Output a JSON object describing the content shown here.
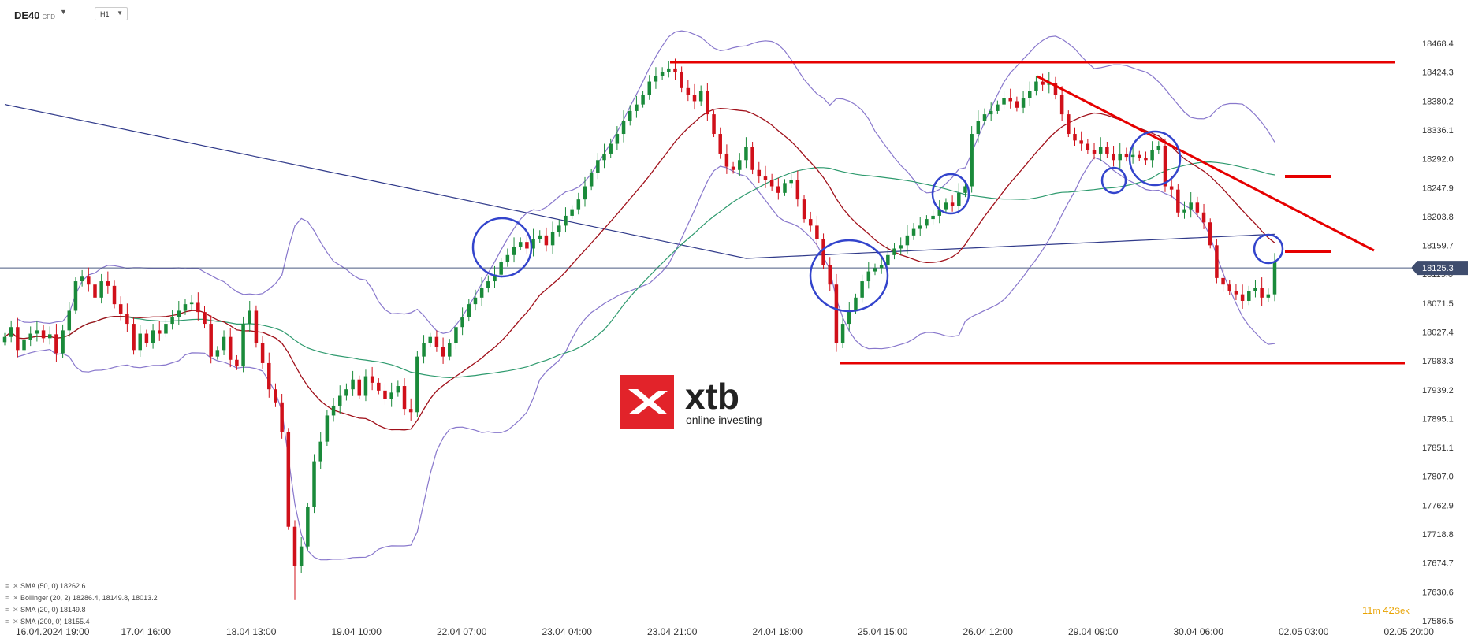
{
  "header": {
    "symbol": "DE40",
    "symbol_tag": "CFD",
    "timeframe": "H1"
  },
  "legend": [
    {
      "text": "SMA (50, 0) 18262.6"
    },
    {
      "text": "Bollinger (20, 2) 18286.4, 18149.8, 18013.2"
    },
    {
      "text": "SMA (20, 0) 18149.8"
    },
    {
      "text": "SMA (200, 0) 18155.4"
    }
  ],
  "logo": {
    "brand": "xtb",
    "tagline": "online investing",
    "color": "#e2232a"
  },
  "timer": {
    "minutes": "11",
    "m": "m",
    "seconds": "42",
    "sek": "Sek"
  },
  "colors": {
    "bull": "#1a8a3a",
    "bear": "#d0101a",
    "bb": "#8877cc",
    "sma20": "#a0101a",
    "sma50": "#2e9a6e",
    "sma200": "#303a8a",
    "annot": "#e60000",
    "circle": "#3344cc"
  },
  "chart_data": {
    "type": "candlestick",
    "symbol": "DE40",
    "timeframe": "H1",
    "y_ticks": [
      18468.4,
      18424.3,
      18380.2,
      18336.1,
      18292.0,
      18247.9,
      18203.8,
      18159.7,
      18115.6,
      18071.5,
      18027.4,
      17983.3,
      17939.2,
      17895.1,
      17851.1,
      17807.0,
      17762.9,
      17718.8,
      17674.7,
      17630.6,
      17586.5
    ],
    "ylim": [
      17586.5,
      18468.4
    ],
    "x_labels": [
      "16.04.2024 19:00",
      "17.04 16:00",
      "18.04 13:00",
      "19.04 10:00",
      "22.04 07:00",
      "23.04 04:00",
      "23.04 21:00",
      "24.04 18:00",
      "25.04 15:00",
      "26.04 12:00",
      "29.04 09:00",
      "30.04 06:00",
      "02.05 03:00",
      "02.05 20:00"
    ],
    "current_price": 18125.3,
    "closes": [
      18020,
      18035,
      18000,
      18015,
      18025,
      18030,
      18018,
      18024,
      17995,
      18030,
      18060,
      18105,
      18112,
      18100,
      18080,
      18105,
      18098,
      18070,
      18055,
      18040,
      18000,
      18025,
      18010,
      18030,
      18025,
      18040,
      18050,
      18060,
      18070,
      18072,
      18058,
      18040,
      17990,
      18000,
      18020,
      17985,
      17975,
      18040,
      18060,
      18010,
      17980,
      17940,
      17920,
      17875,
      17730,
      17670,
      17700,
      17760,
      17830,
      17860,
      17900,
      17915,
      17930,
      17940,
      17955,
      17930,
      17960,
      17950,
      17938,
      17925,
      17935,
      17945,
      17910,
      17905,
      17990,
      18010,
      18020,
      18005,
      17990,
      18010,
      18035,
      18050,
      18070,
      18080,
      18095,
      18105,
      18115,
      18135,
      18145,
      18158,
      18165,
      18155,
      18170,
      18175,
      18160,
      18180,
      18190,
      18205,
      18215,
      18230,
      18250,
      18270,
      18290,
      18300,
      18315,
      18330,
      18350,
      18365,
      18375,
      18390,
      18410,
      18418,
      18425,
      18430,
      18425,
      18400,
      18390,
      18380,
      18395,
      18360,
      18330,
      18300,
      18280,
      18275,
      18290,
      18310,
      18275,
      18265,
      18260,
      18250,
      18240,
      18255,
      18260,
      18230,
      18200,
      18190,
      18170,
      18130,
      18100,
      18010,
      18040,
      18060,
      18080,
      18105,
      18120,
      18125,
      18130,
      18145,
      18155,
      18160,
      18175,
      18185,
      18190,
      18200,
      18205,
      18215,
      18225,
      18220,
      18240,
      18250,
      18330,
      18350,
      18360,
      18365,
      18375,
      18385,
      18380,
      18370,
      18385,
      18395,
      18410,
      18405,
      18408,
      18390,
      18360,
      18330,
      18320,
      18315,
      18305,
      18300,
      18310,
      18300,
      18290,
      18300,
      18295,
      18298,
      18293,
      18290,
      18305,
      18312,
      18250,
      18245,
      18210,
      18215,
      18225,
      18210,
      18195,
      18160,
      18110,
      18100,
      18090,
      18085,
      18075,
      18090,
      18095,
      18080,
      18085,
      18135
    ]
  }
}
